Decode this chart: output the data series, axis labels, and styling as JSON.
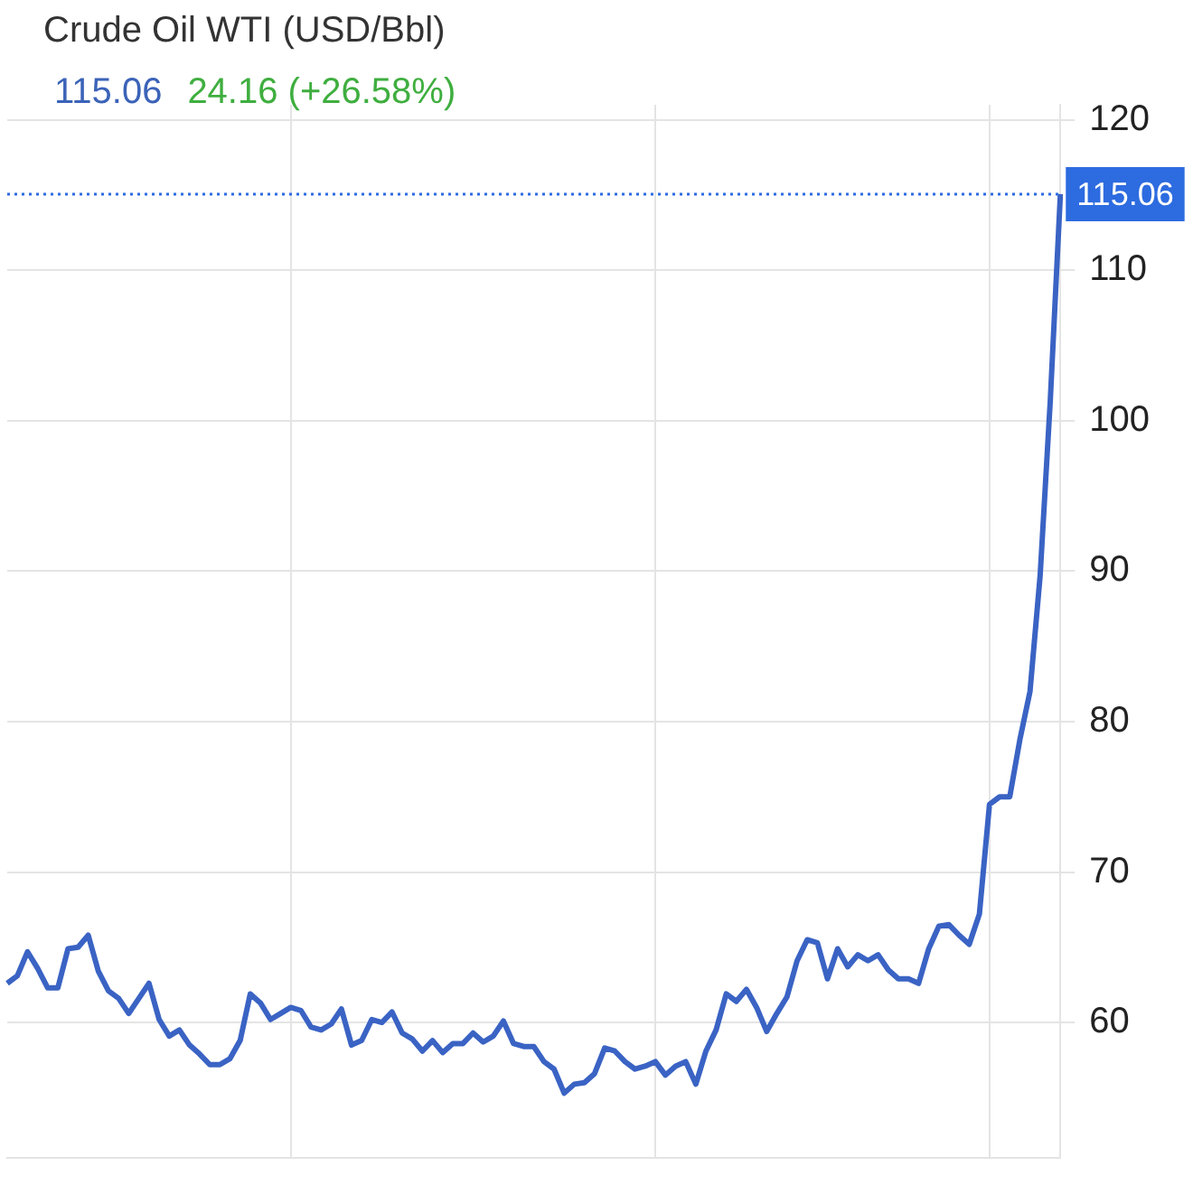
{
  "chart_data": {
    "type": "line",
    "title": "Crude Oil WTI (USD/Bbl)",
    "annotations": [
      "115.06",
      "24.16 (+26.58%)"
    ],
    "categories": [
      null,
      null,
      null,
      null,
      null,
      null,
      null,
      null,
      null,
      null,
      null,
      null,
      null,
      null,
      null,
      null,
      null,
      null,
      null,
      null,
      null,
      null,
      null,
      null,
      null,
      null,
      null,
      null,
      null,
      null,
      null,
      null,
      null,
      null,
      null,
      null,
      null,
      null,
      null,
      null,
      null,
      null,
      null,
      null,
      null,
      null,
      null,
      null,
      null,
      null,
      null,
      null,
      null,
      null,
      null,
      null,
      null,
      null,
      null,
      null,
      null,
      null,
      null,
      null,
      null,
      null,
      null,
      null,
      null,
      null,
      null,
      null,
      null,
      null,
      null,
      null,
      null,
      null,
      null,
      null,
      null,
      null,
      null,
      null,
      null,
      null,
      null,
      null,
      null,
      null,
      null,
      null,
      null,
      null,
      null,
      null,
      null,
      null,
      null,
      null,
      null,
      null,
      null,
      null,
      null
    ],
    "series": [
      {
        "color": "#3a63c4",
        "values": [
          62.6,
          63.1,
          64.7,
          63.6,
          62.3,
          62.3,
          64.9,
          65.0,
          65.8,
          63.4,
          62.1,
          61.6,
          60.6,
          61.6,
          62.6,
          60.2,
          59.1,
          59.5,
          58.5,
          57.9,
          57.2,
          57.2,
          57.6,
          58.8,
          61.9,
          61.3,
          60.2,
          60.6,
          61.0,
          60.8,
          59.7,
          59.5,
          59.9,
          60.9,
          58.5,
          58.8,
          60.2,
          60.0,
          60.7,
          59.3,
          58.9,
          58.1,
          58.8,
          58.0,
          58.6,
          58.6,
          59.3,
          58.7,
          59.1,
          60.1,
          58.6,
          58.4,
          58.4,
          57.4,
          56.9,
          55.3,
          55.9,
          56.0,
          56.6,
          58.3,
          58.1,
          57.4,
          56.9,
          57.1,
          57.4,
          56.5,
          57.1,
          57.4,
          55.9,
          58.1,
          59.5,
          61.9,
          61.4,
          62.2,
          61.0,
          59.4,
          60.6,
          61.7,
          64.1,
          65.5,
          65.3,
          62.9,
          64.9,
          63.7,
          64.5,
          64.1,
          64.5,
          63.5,
          62.9,
          62.9,
          62.6,
          64.9,
          66.4,
          66.5,
          65.8,
          65.2,
          67.2,
          74.5,
          75.0,
          75.0,
          78.8,
          82.0,
          89.7,
          101.3,
          115.06
        ]
      }
    ],
    "ylim": [
      51,
      121
    ],
    "yticks": [
      60,
      70,
      80,
      90,
      100,
      110,
      120
    ],
    "ref_lines": [
      {
        "axis": "y",
        "value": 115.06,
        "label": "115.06",
        "color": "#2d6be0",
        "line_style": "dotted"
      }
    ],
    "grid": true,
    "legend": false,
    "marker": "none",
    "line_style": "solid"
  }
}
